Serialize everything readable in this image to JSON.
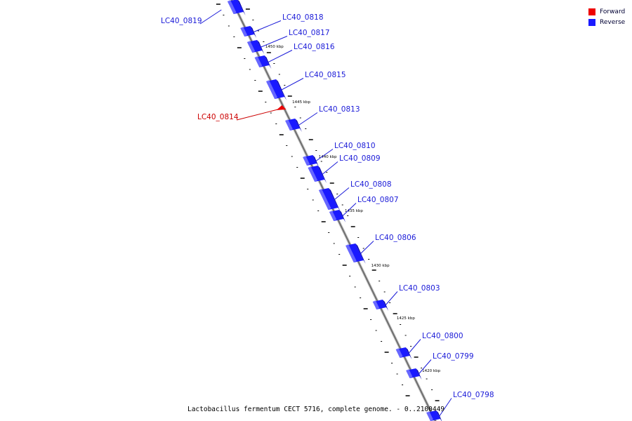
{
  "caption": "Lactobacillus fermentum CECT 5716, complete genome. - 0..2100449",
  "legend": [
    {
      "label": "Forward",
      "color": "#ee0000"
    },
    {
      "label": "Reverse",
      "color": "#1a1aff"
    }
  ],
  "tick_labels": [
    "1450 kbp",
    "1445 kbp",
    "1440 kbp",
    "1435 kbp",
    "1430 kbp",
    "1425 kbp",
    "1420 kbp"
  ],
  "genes": [
    {
      "id": "LC40_0819",
      "strand": "reverse"
    },
    {
      "id": "LC40_0818",
      "strand": "reverse"
    },
    {
      "id": "LC40_0817",
      "strand": "reverse"
    },
    {
      "id": "LC40_0816",
      "strand": "reverse"
    },
    {
      "id": "LC40_0815",
      "strand": "reverse"
    },
    {
      "id": "LC40_0814",
      "strand": "forward"
    },
    {
      "id": "LC40_0813",
      "strand": "reverse"
    },
    {
      "id": "LC40_0810",
      "strand": "reverse"
    },
    {
      "id": "LC40_0809",
      "strand": "reverse"
    },
    {
      "id": "LC40_0808",
      "strand": "reverse"
    },
    {
      "id": "LC40_0807",
      "strand": "reverse"
    },
    {
      "id": "LC40_0806",
      "strand": "reverse"
    },
    {
      "id": "LC40_0803",
      "strand": "reverse"
    },
    {
      "id": "LC40_0800",
      "strand": "reverse"
    },
    {
      "id": "LC40_0799",
      "strand": "reverse"
    },
    {
      "id": "LC40_0798",
      "strand": "reverse"
    }
  ]
}
